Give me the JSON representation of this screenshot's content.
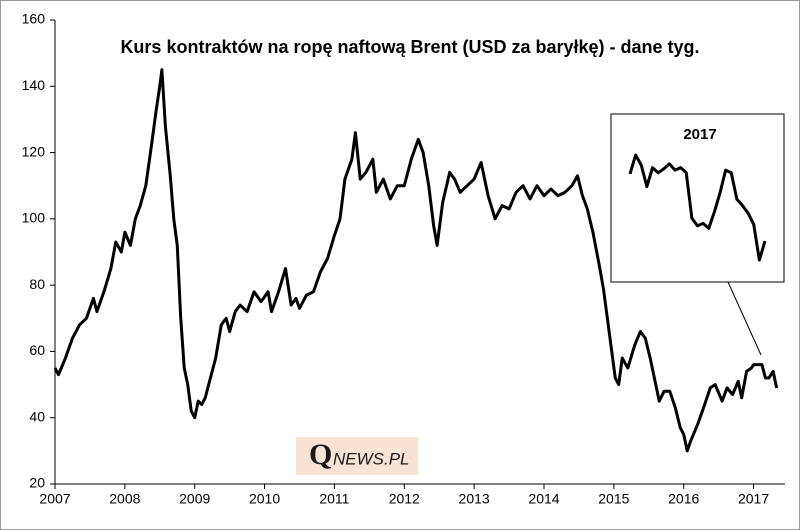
{
  "chart_data": [
    {
      "type": "line",
      "title": "Kurs kontraktów na ropę naftową Brent (USD za baryłkę) - dane tyg.",
      "color": "#000000",
      "x": [
        2007.0,
        2007.05,
        2007.15,
        2007.25,
        2007.35,
        2007.45,
        2007.55,
        2007.6,
        2007.7,
        2007.8,
        2007.87,
        2007.95,
        2008.0,
        2008.08,
        2008.15,
        2008.22,
        2008.3,
        2008.38,
        2008.45,
        2008.5,
        2008.53,
        2008.58,
        2008.65,
        2008.7,
        2008.75,
        2008.8,
        2008.85,
        2008.9,
        2008.95,
        2009.0,
        2009.05,
        2009.1,
        2009.15,
        2009.2,
        2009.3,
        2009.38,
        2009.45,
        2009.5,
        2009.58,
        2009.65,
        2009.75,
        2009.85,
        2009.95,
        2010.05,
        2010.1,
        2010.2,
        2010.3,
        2010.38,
        2010.45,
        2010.5,
        2010.6,
        2010.7,
        2010.8,
        2010.9,
        2011.0,
        2011.08,
        2011.15,
        2011.25,
        2011.3,
        2011.37,
        2011.45,
        2011.55,
        2011.6,
        2011.7,
        2011.8,
        2011.9,
        2012.0,
        2012.1,
        2012.2,
        2012.27,
        2012.35,
        2012.42,
        2012.47,
        2012.55,
        2012.65,
        2012.72,
        2012.8,
        2012.9,
        2013.0,
        2013.1,
        2013.2,
        2013.3,
        2013.4,
        2013.5,
        2013.6,
        2013.7,
        2013.8,
        2013.9,
        2014.0,
        2014.1,
        2014.2,
        2014.3,
        2014.4,
        2014.48,
        2014.55,
        2014.62,
        2014.7,
        2014.8,
        2014.85,
        2014.92,
        2014.97,
        2015.02,
        2015.07,
        2015.12,
        2015.2,
        2015.3,
        2015.38,
        2015.45,
        2015.52,
        2015.6,
        2015.65,
        2015.72,
        2015.8,
        2015.88,
        2015.95,
        2016.0,
        2016.05,
        2016.1,
        2016.2,
        2016.3,
        2016.38,
        2016.45,
        2016.55,
        2016.62,
        2016.7,
        2016.78,
        2016.83,
        2016.9,
        2016.97,
        2017.0,
        2017.05,
        2017.12,
        2017.17,
        2017.22,
        2017.28,
        2017.33
      ],
      "values": [
        55,
        53,
        58,
        64,
        68,
        70,
        76,
        72,
        78,
        85,
        93,
        90,
        96,
        92,
        100,
        104,
        110,
        122,
        133,
        140,
        145,
        128,
        113,
        100,
        92,
        70,
        55,
        50,
        42,
        40,
        45,
        44,
        46,
        50,
        58,
        68,
        70,
        66,
        72,
        74,
        72,
        78,
        75,
        78,
        72,
        78,
        85,
        74,
        76,
        73,
        77,
        78,
        84,
        88,
        95,
        100,
        112,
        118,
        126,
        112,
        114,
        118,
        108,
        112,
        106,
        110,
        110,
        118,
        124,
        120,
        110,
        98,
        92,
        105,
        114,
        112,
        108,
        110,
        112,
        117,
        107,
        100,
        104,
        103,
        108,
        110,
        106,
        110,
        107,
        109,
        107,
        108,
        110,
        113,
        107,
        103,
        96,
        85,
        79,
        68,
        60,
        52,
        50,
        58,
        55,
        62,
        66,
        64,
        58,
        50,
        45,
        48,
        48,
        43,
        37,
        35,
        30,
        33,
        38,
        44,
        49,
        50,
        45,
        49,
        47,
        51,
        46,
        54,
        55,
        56,
        56,
        56,
        52,
        52,
        54,
        49
      ],
      "xlim": [
        2007,
        2017.45
      ],
      "ylim": [
        20,
        160
      ],
      "xticks": [
        2007,
        2008,
        2009,
        2010,
        2011,
        2012,
        2013,
        2014,
        2015,
        2016,
        2017
      ],
      "yticks": [
        20,
        40,
        60,
        80,
        100,
        120,
        140,
        160
      ]
    },
    {
      "type": "line",
      "title": "2017",
      "color": "#000000",
      "values": [
        55.5,
        57.0,
        56.2,
        54.5,
        56.0,
        55.6,
        55.9,
        56.3,
        55.8,
        56.0,
        55.6,
        52.0,
        51.4,
        51.6,
        51.2,
        52.5,
        54.0,
        55.8,
        55.6,
        53.5,
        53.0,
        52.4,
        51.5,
        48.7,
        50.2
      ]
    }
  ],
  "logo": {
    "initial": "Q",
    "rest": "NEWS.PL"
  }
}
